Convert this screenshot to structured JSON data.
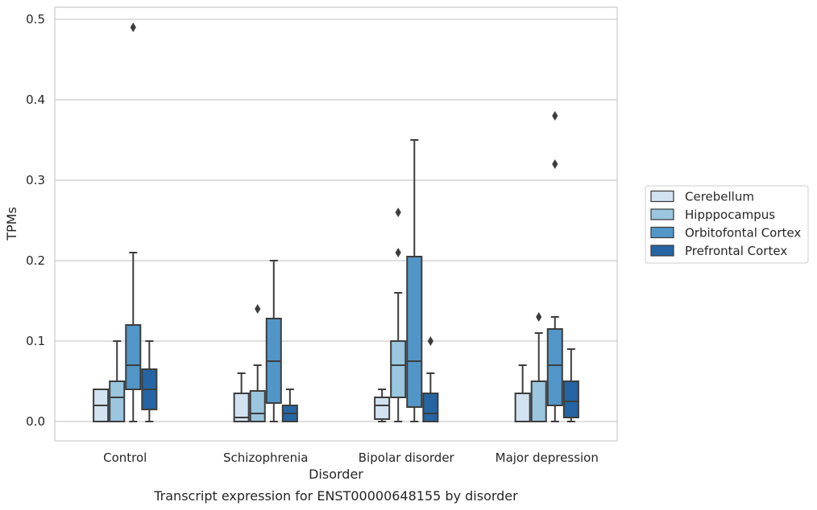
{
  "chart_data": {
    "type": "boxplot",
    "xlabel": "Disorder",
    "ylabel": "TPMs",
    "caption": "Transcript expression for ENST00000648155 by disorder",
    "ylim": [
      -0.024,
      0.515
    ],
    "yticks": [
      0.0,
      0.1,
      0.2,
      0.3,
      0.4,
      0.5
    ],
    "ytick_labels": [
      "0.0",
      "0.1",
      "0.2",
      "0.3",
      "0.4",
      "0.5"
    ],
    "grid": "horizontal",
    "legend_position": "right",
    "categories": [
      "Control",
      "Schizophrenia",
      "Bipolar disorder",
      "Major depression"
    ],
    "series": [
      {
        "name": "Cerebellum",
        "color": "#d2e2f1",
        "boxes": [
          {
            "whislo": 0.0,
            "q1": 0.0,
            "med": 0.02,
            "q3": 0.04,
            "whishi": 0.04,
            "fliers": []
          },
          {
            "whislo": 0.0,
            "q1": 0.0,
            "med": 0.005,
            "q3": 0.035,
            "whishi": 0.06,
            "fliers": []
          },
          {
            "whislo": 0.0,
            "q1": 0.003,
            "med": 0.02,
            "q3": 0.03,
            "whishi": 0.04,
            "fliers": []
          },
          {
            "whislo": 0.0,
            "q1": 0.0,
            "med": 0.0,
            "q3": 0.035,
            "whishi": 0.07,
            "fliers": []
          }
        ]
      },
      {
        "name": "Hipppocampus",
        "color": "#9ac6df",
        "boxes": [
          {
            "whislo": 0.0,
            "q1": 0.0,
            "med": 0.03,
            "q3": 0.05,
            "whishi": 0.1,
            "fliers": []
          },
          {
            "whislo": 0.0,
            "q1": 0.0,
            "med": 0.01,
            "q3": 0.038,
            "whishi": 0.07,
            "fliers": [
              0.14
            ]
          },
          {
            "whislo": 0.0,
            "q1": 0.03,
            "med": 0.07,
            "q3": 0.1,
            "whishi": 0.16,
            "fliers": [
              0.21,
              0.26
            ]
          },
          {
            "whislo": 0.0,
            "q1": 0.0,
            "med": 0.0,
            "q3": 0.05,
            "whishi": 0.11,
            "fliers": [
              0.13
            ]
          }
        ]
      },
      {
        "name": "Orbitofontal Cortex",
        "color": "#5296c8",
        "boxes": [
          {
            "whislo": 0.0,
            "q1": 0.04,
            "med": 0.07,
            "q3": 0.12,
            "whishi": 0.21,
            "fliers": [
              0.49
            ]
          },
          {
            "whislo": 0.0,
            "q1": 0.023,
            "med": 0.075,
            "q3": 0.128,
            "whishi": 0.2,
            "fliers": []
          },
          {
            "whislo": 0.0,
            "q1": 0.018,
            "med": 0.075,
            "q3": 0.205,
            "whishi": 0.35,
            "fliers": []
          },
          {
            "whislo": 0.0,
            "q1": 0.02,
            "med": 0.07,
            "q3": 0.115,
            "whishi": 0.13,
            "fliers": [
              0.32,
              0.38
            ]
          }
        ]
      },
      {
        "name": "Prefrontal Cortex",
        "color": "#2565a3",
        "boxes": [
          {
            "whislo": 0.0,
            "q1": 0.015,
            "med": 0.04,
            "q3": 0.065,
            "whishi": 0.1,
            "fliers": []
          },
          {
            "whislo": 0.0,
            "q1": 0.0,
            "med": 0.01,
            "q3": 0.02,
            "whishi": 0.04,
            "fliers": []
          },
          {
            "whislo": 0.0,
            "q1": 0.0,
            "med": 0.01,
            "q3": 0.035,
            "whishi": 0.06,
            "fliers": [
              0.1
            ]
          },
          {
            "whislo": 0.0,
            "q1": 0.005,
            "med": 0.025,
            "q3": 0.05,
            "whishi": 0.09,
            "fliers": []
          }
        ]
      }
    ]
  }
}
